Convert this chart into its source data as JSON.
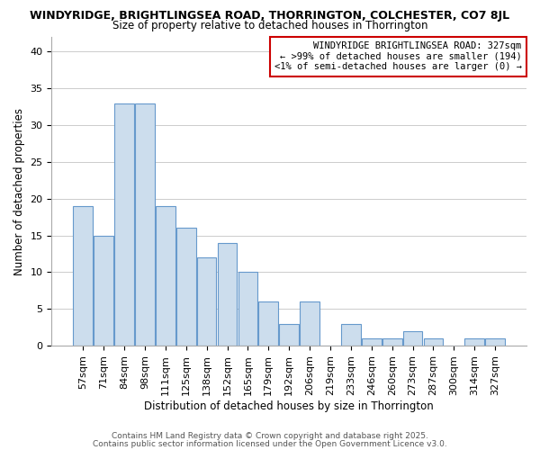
{
  "title_line1": "WINDYRIDGE, BRIGHTLINGSEA ROAD, THORRINGTON, COLCHESTER, CO7 8JL",
  "title_line2": "Size of property relative to detached houses in Thorrington",
  "xlabel": "Distribution of detached houses by size in Thorrington",
  "ylabel": "Number of detached properties",
  "categories": [
    "57sqm",
    "71sqm",
    "84sqm",
    "98sqm",
    "111sqm",
    "125sqm",
    "138sqm",
    "152sqm",
    "165sqm",
    "179sqm",
    "192sqm",
    "206sqm",
    "219sqm",
    "233sqm",
    "246sqm",
    "260sqm",
    "273sqm",
    "287sqm",
    "300sqm",
    "314sqm",
    "327sqm"
  ],
  "values": [
    19,
    15,
    33,
    33,
    19,
    16,
    12,
    14,
    10,
    6,
    3,
    6,
    0,
    3,
    1,
    1,
    2,
    1,
    0,
    1,
    1
  ],
  "bar_color": "#ccdded",
  "bar_edge_color": "#6699cc",
  "highlight_index": 20,
  "ylim": [
    0,
    42
  ],
  "yticks": [
    0,
    5,
    10,
    15,
    20,
    25,
    30,
    35,
    40
  ],
  "annotation_title": "WINDYRIDGE BRIGHTLINGSEA ROAD: 327sqm",
  "annotation_line2": "← >99% of detached houses are smaller (194)",
  "annotation_line3": "<1% of semi-detached houses are larger (0) →",
  "annotation_border_color": "#cc0000",
  "annotation_bg_color": "#ffffff",
  "footer_line1": "Contains HM Land Registry data © Crown copyright and database right 2025.",
  "footer_line2": "Contains public sector information licensed under the Open Government Licence v3.0.",
  "background_color": "#ffffff",
  "grid_color": "#cccccc",
  "title_fontsize": 9,
  "subtitle_fontsize": 8.5,
  "label_fontsize": 8.5,
  "tick_fontsize": 8,
  "annotation_fontsize": 7.5,
  "footer_fontsize": 6.5
}
